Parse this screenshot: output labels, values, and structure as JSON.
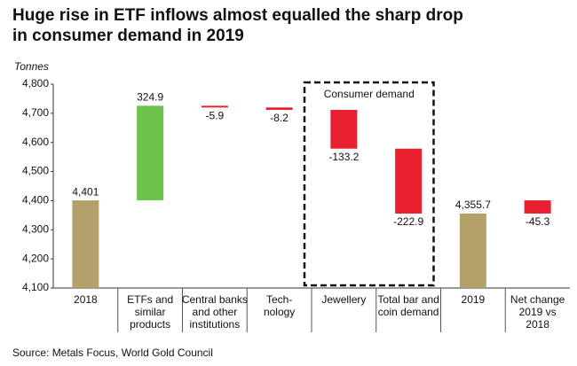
{
  "chart_data": {
    "type": "waterfall",
    "title": "Huge rise in ETF inflows almost equalled the sharp drop\nin consumer demand in 2019",
    "y_label": "Tonnes",
    "categories": [
      "2018",
      "ETFs and\nsimilar\nproducts",
      "Central banks\nand other\ninstitutions",
      "Tech-\nnology",
      "Jewellery",
      "Total bar and\ncoin demand",
      "2019",
      "Net change\n2019 vs\n2018"
    ],
    "values": [
      4401,
      324.9,
      -5.9,
      -8.2,
      -133.2,
      -222.9,
      4355.7,
      -45.3
    ],
    "value_labels": [
      "4,401",
      "324.9",
      "-5.9",
      "-8.2",
      "-133.2",
      "-222.9",
      "4,355.7",
      "-45.3"
    ],
    "measure": [
      "absolute",
      "relative",
      "relative",
      "relative",
      "relative",
      "relative",
      "absolute",
      "net"
    ],
    "colors": {
      "total": "#b4a06a",
      "increase": "#6cc24a",
      "decrease": "#e8202f"
    },
    "ylim": [
      4100,
      4800
    ],
    "yticks": [
      {
        "value": 4100,
        "label": "4,100"
      },
      {
        "value": 4200,
        "label": "4,200"
      },
      {
        "value": 4300,
        "label": "4,300"
      },
      {
        "value": 4400,
        "label": "4,400"
      },
      {
        "value": 4500,
        "label": "4,500"
      },
      {
        "value": 4600,
        "label": "4,600"
      },
      {
        "value": 4700,
        "label": "4,700"
      },
      {
        "value": 4800,
        "label": "4,800"
      }
    ],
    "grid": false,
    "annotation": "Consumer demand",
    "source": "Source: Metals Focus, World Gold Council"
  }
}
